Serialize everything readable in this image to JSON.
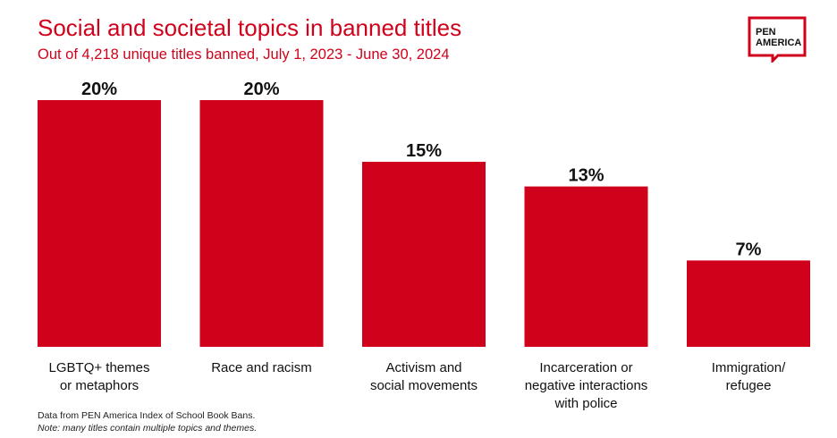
{
  "header": {
    "title": "Social and societal topics in banned titles",
    "subtitle": "Out of 4,218 unique titles banned, July 1, 2023 - June 30, 2024"
  },
  "logo": {
    "line1": "PEN",
    "line2": "AMERICA",
    "icon": "speech-bubble-logo"
  },
  "footnotes": {
    "source": "Data from PEN America Index of School Book Bans.",
    "note": "Note: many titles contain multiple topics and themes."
  },
  "colors": {
    "bar": "#d0021b",
    "accent": "#d0021b"
  },
  "chart_data": {
    "type": "bar",
    "categories": [
      [
        "LGBTQ+ themes",
        "or metaphors"
      ],
      [
        "Race and racism"
      ],
      [
        "Activism and",
        "social movements"
      ],
      [
        "Incarceration or",
        "negative interactions",
        "with police"
      ],
      [
        "Immigration/",
        "refugee"
      ]
    ],
    "values": [
      20,
      20,
      15,
      13,
      7
    ],
    "value_labels": [
      "20%",
      "20%",
      "15%",
      "13%",
      "7%"
    ],
    "ylim": [
      0,
      20
    ],
    "grid": false,
    "legend": "none"
  }
}
